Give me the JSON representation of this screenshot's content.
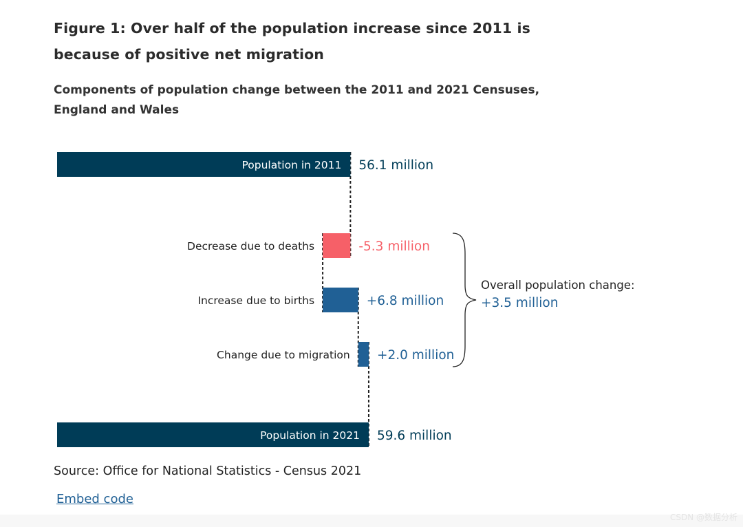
{
  "figure": {
    "title": "Figure 1: Over half of the population increase since 2011 is because of positive net migration",
    "subtitle": "Components of population change between the 2011 and 2021 Censuses, England and Wales",
    "source": "Source: Office for National Statistics - Census 2021",
    "embed_label": "Embed code",
    "watermark": "CSDN @数据分析"
  },
  "chart_data": {
    "type": "bar",
    "subtype": "waterfall",
    "unit": "million",
    "categories": [
      "Population in 2011",
      "Decrease due to deaths",
      "Increase due to births",
      "Change due to migration",
      "Population in 2021"
    ],
    "values": [
      56.1,
      -5.3,
      6.8,
      2.0,
      59.6
    ],
    "kinds": [
      "total",
      "change",
      "change",
      "change",
      "total"
    ],
    "value_labels": [
      "56.1 million",
      "-5.3 million",
      "+6.8 million",
      "+2.0 million",
      "59.6 million"
    ],
    "bracket": {
      "label": "Overall population change:",
      "value": "+3.5 million",
      "spans": [
        "Decrease due to deaths",
        "Increase due to births",
        "Change due to migration"
      ]
    },
    "colors": {
      "total": "#003c57",
      "increase": "#206095",
      "decrease": "#f66068",
      "text": "#222222",
      "connector": "#222222"
    },
    "connectors": "dashed"
  }
}
